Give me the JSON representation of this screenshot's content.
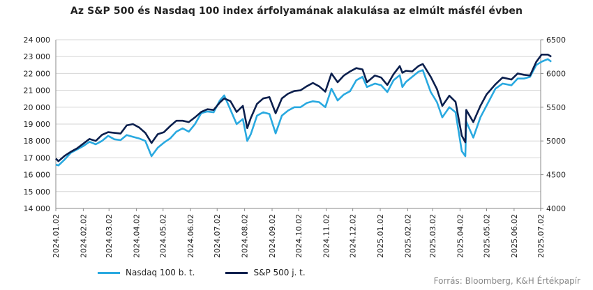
{
  "title": "Az S&P 500 és Nasdaq 100 index árfolyamának alakulása az elmúlt másfél évben",
  "source": "Forrás: Bloomberg, K&H Értékpapír",
  "colors": {
    "nasdaq": "#29a9e0",
    "sp500": "#0b1f4d",
    "grid": "#d6d6d6",
    "axis": "#888888"
  },
  "chart_data": {
    "type": "line",
    "title": "Az S&P 500 és Nasdaq 100 index árfolyamának alakulása az elmúlt másfél évben",
    "xlabel": "",
    "ylabel_left": "",
    "ylabel_right": "",
    "ylim_left": [
      14000,
      24000
    ],
    "ylim_right": [
      4000,
      6500
    ],
    "yticks_left": [
      "14 000",
      "15 000",
      "16 000",
      "17 000",
      "18 000",
      "19 000",
      "20 000",
      "21 000",
      "22 000",
      "23 000",
      "24 000"
    ],
    "yticks_right": [
      "4000",
      "4500",
      "5000",
      "5500",
      "6000",
      "6500"
    ],
    "x_tick_labels": [
      "2024.01.02",
      "2024.02.02",
      "2024.03.02",
      "2024.04.02",
      "2024.05.02",
      "2024.06.02",
      "2024.07.02",
      "2024.08.02",
      "2024.09.02",
      "2024.10.02",
      "2024.11.02",
      "2024.12.02",
      "2025.01.02",
      "2025.02.02",
      "2025.03.02",
      "2025.04.02",
      "2025.05.02",
      "2025.06.02",
      "2025.07.02"
    ],
    "grid": true,
    "legend_position": "bottom-left",
    "series": [
      {
        "name": "Nasdaq 100 b. t.",
        "axis": "left",
        "points": [
          [
            "2024.01.02",
            16600
          ],
          [
            "2024.01.05",
            16550
          ],
          [
            "2024.01.12",
            16900
          ],
          [
            "2024.01.19",
            17300
          ],
          [
            "2024.01.26",
            17500
          ],
          [
            "2024.02.02",
            17700
          ],
          [
            "2024.02.09",
            17950
          ],
          [
            "2024.02.16",
            17800
          ],
          [
            "2024.02.23",
            18000
          ],
          [
            "2024.03.01",
            18300
          ],
          [
            "2024.03.08",
            18100
          ],
          [
            "2024.03.15",
            18050
          ],
          [
            "2024.03.22",
            18350
          ],
          [
            "2024.03.29",
            18250
          ],
          [
            "2024.04.05",
            18150
          ],
          [
            "2024.04.12",
            18000
          ],
          [
            "2024.04.19",
            17100
          ],
          [
            "2024.04.26",
            17600
          ],
          [
            "2024.05.03",
            17900
          ],
          [
            "2024.05.10",
            18150
          ],
          [
            "2024.05.17",
            18550
          ],
          [
            "2024.05.24",
            18750
          ],
          [
            "2024.05.31",
            18550
          ],
          [
            "2024.06.07",
            19000
          ],
          [
            "2024.06.14",
            19650
          ],
          [
            "2024.06.21",
            19750
          ],
          [
            "2024.06.28",
            19700
          ],
          [
            "2024.07.05",
            20400
          ],
          [
            "2024.07.10",
            20700
          ],
          [
            "2024.07.17",
            19850
          ],
          [
            "2024.07.24",
            19000
          ],
          [
            "2024.07.31",
            19300
          ],
          [
            "2024.08.05",
            18000
          ],
          [
            "2024.08.09",
            18400
          ],
          [
            "2024.08.16",
            19500
          ],
          [
            "2024.08.23",
            19700
          ],
          [
            "2024.08.30",
            19600
          ],
          [
            "2024.09.06",
            18450
          ],
          [
            "2024.09.13",
            19500
          ],
          [
            "2024.09.20",
            19800
          ],
          [
            "2024.09.27",
            20000
          ],
          [
            "2024.10.04",
            20000
          ],
          [
            "2024.10.11",
            20250
          ],
          [
            "2024.10.18",
            20350
          ],
          [
            "2024.10.25",
            20300
          ],
          [
            "2024.11.01",
            20000
          ],
          [
            "2024.11.08",
            21100
          ],
          [
            "2024.11.15",
            20400
          ],
          [
            "2024.11.22",
            20750
          ],
          [
            "2024.11.29",
            20950
          ],
          [
            "2024.12.06",
            21600
          ],
          [
            "2024.12.13",
            21800
          ],
          [
            "2024.12.18",
            21200
          ],
          [
            "2024.12.27",
            21400
          ],
          [
            "2025.01.03",
            21300
          ],
          [
            "2025.01.10",
            20900
          ],
          [
            "2025.01.17",
            21600
          ],
          [
            "2025.01.24",
            21900
          ],
          [
            "2025.01.27",
            21200
          ],
          [
            "2025.01.31",
            21500
          ],
          [
            "2025.02.07",
            21800
          ],
          [
            "2025.02.14",
            22100
          ],
          [
            "2025.02.19",
            22200
          ],
          [
            "2025.02.28",
            20900
          ],
          [
            "2025.03.07",
            20300
          ],
          [
            "2025.03.13",
            19400
          ],
          [
            "2025.03.21",
            20000
          ],
          [
            "2025.03.28",
            19700
          ],
          [
            "2025.04.04",
            17400
          ],
          [
            "2025.04.08",
            17100
          ],
          [
            "2025.04.09",
            19150
          ],
          [
            "2025.04.17",
            18200
          ],
          [
            "2025.04.25",
            19400
          ],
          [
            "2025.05.02",
            20100
          ],
          [
            "2025.05.12",
            21100
          ],
          [
            "2025.05.20",
            21400
          ],
          [
            "2025.05.30",
            21300
          ],
          [
            "2025.06.06",
            21700
          ],
          [
            "2025.06.13",
            21700
          ],
          [
            "2025.06.20",
            21800
          ],
          [
            "2025.06.27",
            22500
          ],
          [
            "2025.07.03",
            22700
          ],
          [
            "2025.07.10",
            22850
          ],
          [
            "2025.07.14",
            22700
          ]
        ]
      },
      {
        "name": "S&P 500 j. t.",
        "axis": "right",
        "points": [
          [
            "2024.01.02",
            4740
          ],
          [
            "2024.01.05",
            4700
          ],
          [
            "2024.01.12",
            4780
          ],
          [
            "2024.01.19",
            4840
          ],
          [
            "2024.01.26",
            4890
          ],
          [
            "2024.02.02",
            4960
          ],
          [
            "2024.02.09",
            5030
          ],
          [
            "2024.02.16",
            5000
          ],
          [
            "2024.02.23",
            5090
          ],
          [
            "2024.03.01",
            5130
          ],
          [
            "2024.03.08",
            5120
          ],
          [
            "2024.03.15",
            5110
          ],
          [
            "2024.03.22",
            5230
          ],
          [
            "2024.03.29",
            5250
          ],
          [
            "2024.04.05",
            5200
          ],
          [
            "2024.04.12",
            5120
          ],
          [
            "2024.04.19",
            4970
          ],
          [
            "2024.04.26",
            5100
          ],
          [
            "2024.05.03",
            5130
          ],
          [
            "2024.05.10",
            5220
          ],
          [
            "2024.05.17",
            5300
          ],
          [
            "2024.05.24",
            5300
          ],
          [
            "2024.05.31",
            5280
          ],
          [
            "2024.06.07",
            5350
          ],
          [
            "2024.06.14",
            5430
          ],
          [
            "2024.06.21",
            5470
          ],
          [
            "2024.06.28",
            5460
          ],
          [
            "2024.07.05",
            5570
          ],
          [
            "2024.07.10",
            5630
          ],
          [
            "2024.07.17",
            5590
          ],
          [
            "2024.07.24",
            5430
          ],
          [
            "2024.07.31",
            5520
          ],
          [
            "2024.08.05",
            5190
          ],
          [
            "2024.08.09",
            5340
          ],
          [
            "2024.08.16",
            5550
          ],
          [
            "2024.08.23",
            5630
          ],
          [
            "2024.08.30",
            5650
          ],
          [
            "2024.09.06",
            5410
          ],
          [
            "2024.09.13",
            5630
          ],
          [
            "2024.09.20",
            5700
          ],
          [
            "2024.09.27",
            5740
          ],
          [
            "2024.10.04",
            5750
          ],
          [
            "2024.10.11",
            5810
          ],
          [
            "2024.10.18",
            5860
          ],
          [
            "2024.10.25",
            5810
          ],
          [
            "2024.11.01",
            5730
          ],
          [
            "2024.11.08",
            6000
          ],
          [
            "2024.11.15",
            5870
          ],
          [
            "2024.11.22",
            5970
          ],
          [
            "2024.11.29",
            6030
          ],
          [
            "2024.12.06",
            6080
          ],
          [
            "2024.12.13",
            6060
          ],
          [
            "2024.12.18",
            5870
          ],
          [
            "2024.12.27",
            5970
          ],
          [
            "2025.01.03",
            5940
          ],
          [
            "2025.01.10",
            5830
          ],
          [
            "2025.01.17",
            5990
          ],
          [
            "2025.01.24",
            6110
          ],
          [
            "2025.01.27",
            6010
          ],
          [
            "2025.01.31",
            6040
          ],
          [
            "2025.02.07",
            6030
          ],
          [
            "2025.02.14",
            6110
          ],
          [
            "2025.02.19",
            6140
          ],
          [
            "2025.02.28",
            5950
          ],
          [
            "2025.03.07",
            5770
          ],
          [
            "2025.03.13",
            5520
          ],
          [
            "2025.03.21",
            5670
          ],
          [
            "2025.03.28",
            5580
          ],
          [
            "2025.04.04",
            5080
          ],
          [
            "2025.04.08",
            4980
          ],
          [
            "2025.04.09",
            5460
          ],
          [
            "2025.04.17",
            5280
          ],
          [
            "2025.04.25",
            5520
          ],
          [
            "2025.05.02",
            5690
          ],
          [
            "2025.05.12",
            5840
          ],
          [
            "2025.05.20",
            5940
          ],
          [
            "2025.05.30",
            5910
          ],
          [
            "2025.06.06",
            6000
          ],
          [
            "2025.06.13",
            5980
          ],
          [
            "2025.06.20",
            5970
          ],
          [
            "2025.06.27",
            6170
          ],
          [
            "2025.07.03",
            6280
          ],
          [
            "2025.07.10",
            6280
          ],
          [
            "2025.07.14",
            6250
          ]
        ]
      }
    ]
  }
}
